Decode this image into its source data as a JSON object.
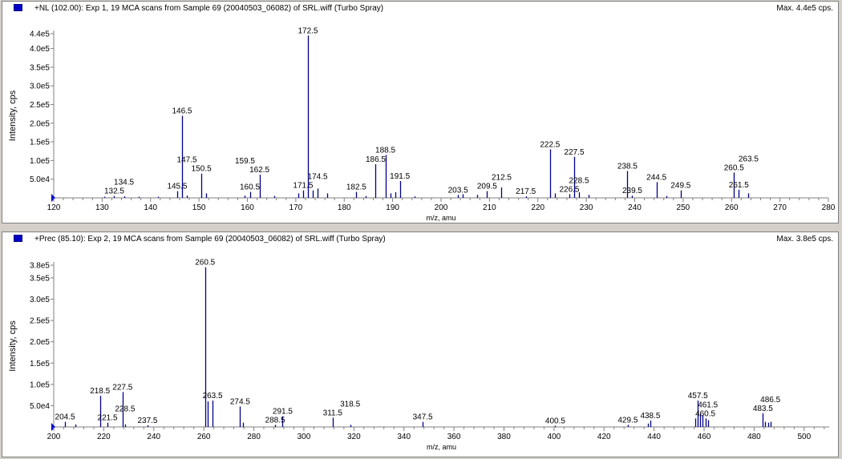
{
  "chart_data": [
    {
      "type": "bar",
      "legend_color": "#0000c8",
      "bar_color": "#00008b",
      "title": "+NL (102.00): Exp 1, 19 MCA scans from Sample 69 (20040503_06082) of SRL.wiff (Turbo Spray)",
      "max_label": "Max. 4.4e5 cps.",
      "xlabel": "m/z, amu",
      "ylabel": "Intensity, cps",
      "xlim": [
        120,
        280
      ],
      "ylim": [
        0,
        440000
      ],
      "xticks": [
        "120",
        "130",
        "140",
        "150",
        "160",
        "170",
        "180",
        "190",
        "200",
        "210",
        "220",
        "230",
        "240",
        "250",
        "260",
        "270",
        "280"
      ],
      "yticks": [
        "5.0e4",
        "1.0e5",
        "1.5e5",
        "2.0e5",
        "2.5e5",
        "3.0e5",
        "3.5e5",
        "4.0e5",
        "4.4e5"
      ],
      "x": [
        130.5,
        132.5,
        134.5,
        137.5,
        141.5,
        145.5,
        146.5,
        147.5,
        150.5,
        151.5,
        159.5,
        160.5,
        162.5,
        165.5,
        170.5,
        171.5,
        172.5,
        173.5,
        174.5,
        176.5,
        182.5,
        184.5,
        186.5,
        188.5,
        189.5,
        190.5,
        191.5,
        194.5,
        203.5,
        204.5,
        207.5,
        209.5,
        212.5,
        217.5,
        222.5,
        223.5,
        226.5,
        227.5,
        228.5,
        230.5,
        238.5,
        239.5,
        244.5,
        246.5,
        249.5,
        260.5,
        261.5,
        263.5
      ],
      "values": [
        3000,
        5000,
        4000,
        3000,
        3000,
        18000,
        220000,
        6000,
        65000,
        12000,
        6000,
        16000,
        62000,
        5000,
        12000,
        20000,
        435000,
        20000,
        25000,
        12000,
        16000,
        5000,
        90000,
        115000,
        12000,
        15000,
        45000,
        4000,
        8000,
        10000,
        8000,
        18000,
        28000,
        4000,
        130000,
        12000,
        10000,
        110000,
        15000,
        8000,
        72000,
        6000,
        42000,
        5000,
        20000,
        68000,
        22000,
        12000
      ],
      "peak_labels": [
        "172.5",
        "146.5",
        "150.5",
        "162.5",
        "145.5",
        "147.5",
        "160.5",
        "159.5",
        "171.5",
        "174.5",
        "186.5",
        "188.5",
        "191.5",
        "182.5",
        "132.5",
        "134.5",
        "203.5",
        "209.5",
        "212.5",
        "217.5",
        "222.5",
        "227.5",
        "226.5",
        "228.5",
        "238.5",
        "239.5",
        "244.5",
        "249.5",
        "260.5",
        "261.5",
        "263.5"
      ]
    },
    {
      "type": "bar",
      "legend_color": "#0000c8",
      "bar_color": "#00008b",
      "title": "+Prec (85.10): Exp 2, 19 MCA scans from Sample 69 (20040503_06082) of SRL.wiff (Turbo Spray)",
      "max_label": "Max. 3.8e5 cps.",
      "xlabel": "m/z, amu",
      "ylabel": "Intensity, cps",
      "xlim": [
        200,
        510
      ],
      "ylim": [
        0,
        380000
      ],
      "xticks": [
        "200",
        "220",
        "240",
        "260",
        "280",
        "300",
        "320",
        "340",
        "360",
        "380",
        "400",
        "420",
        "440",
        "460",
        "480",
        "500"
      ],
      "yticks": [
        "5.0e4",
        "1.0e5",
        "1.5e5",
        "2.0e5",
        "2.5e5",
        "3.0e5",
        "3.5e5",
        "3.8e5"
      ],
      "x": [
        204.5,
        208.5,
        218.5,
        221.5,
        227.5,
        228.5,
        237.5,
        260.5,
        261.5,
        263.5,
        274.5,
        275.5,
        288.5,
        291.5,
        311.5,
        318.5,
        347.5,
        400.5,
        429.5,
        437.5,
        438.5,
        456.5,
        457.5,
        458.5,
        459.5,
        460.5,
        461.5,
        483.5,
        484.5,
        485.5,
        486.5
      ],
      "values": [
        12000,
        6000,
        73000,
        10000,
        82000,
        6000,
        4000,
        375000,
        60000,
        62000,
        48000,
        10000,
        5000,
        25000,
        22000,
        5000,
        12000,
        3000,
        5000,
        8000,
        15000,
        20000,
        62000,
        30000,
        28000,
        20000,
        16000,
        32000,
        12000,
        10000,
        12000
      ],
      "peak_labels": [
        "260.5",
        "218.5",
        "227.5",
        "204.5",
        "221.5",
        "228.5",
        "237.5",
        "263.5",
        "274.5",
        "288.5",
        "291.5",
        "311.5",
        "318.5",
        "347.5",
        "400.5",
        "429.5",
        "438.5",
        "457.5",
        "460.5",
        "461.5",
        "483.5",
        "486.5"
      ]
    }
  ]
}
